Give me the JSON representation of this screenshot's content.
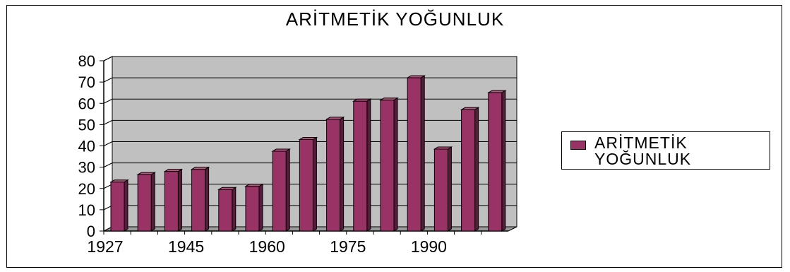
{
  "chart_data": {
    "type": "bar",
    "title": "ARİTMETİK YOĞUNLUK",
    "series": [
      {
        "name": "ARİTMETİK YOĞUNLUK",
        "values": [
          23,
          26.5,
          28,
          29,
          19.5,
          21,
          37.5,
          43,
          52.5,
          61,
          61.5,
          72,
          38.5,
          57,
          65
        ]
      }
    ],
    "x_tick_labels": [
      "1927",
      "1945",
      "1960",
      "1975",
      "1990"
    ],
    "ylim": [
      0,
      80
    ],
    "yticks": [
      0,
      10,
      20,
      30,
      40,
      50,
      60,
      70,
      80
    ],
    "grid": true,
    "legend_position": "right",
    "colors": {
      "bar_front": "#993366",
      "bar_side": "#5a1a3c",
      "bar_top": "#b8567f",
      "plot_wall": "#c0c0c0",
      "plot_floor": "#9a9a9a"
    }
  }
}
